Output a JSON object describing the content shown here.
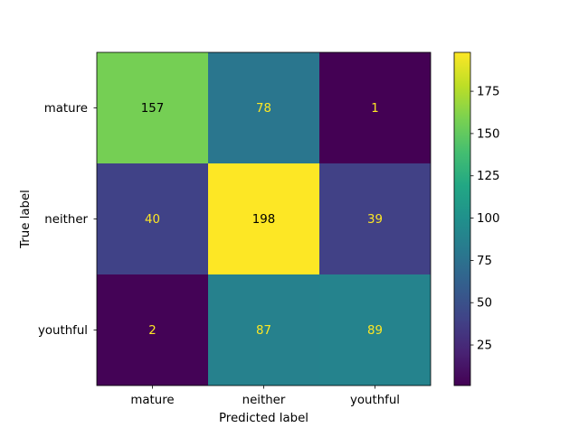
{
  "chart_data": {
    "type": "heatmap",
    "title": "",
    "xlabel": "Predicted label",
    "ylabel": "True label",
    "x_categories": [
      "mature",
      "neither",
      "youthful"
    ],
    "y_categories": [
      "mature",
      "neither",
      "youthful"
    ],
    "values": [
      [
        157,
        78,
        1
      ],
      [
        40,
        198,
        39
      ],
      [
        2,
        87,
        89
      ]
    ],
    "colormap": "viridis",
    "color_range": [
      1,
      198
    ],
    "colorbar_ticks": [
      25,
      50,
      75,
      100,
      125,
      150,
      175
    ],
    "grid": false
  }
}
